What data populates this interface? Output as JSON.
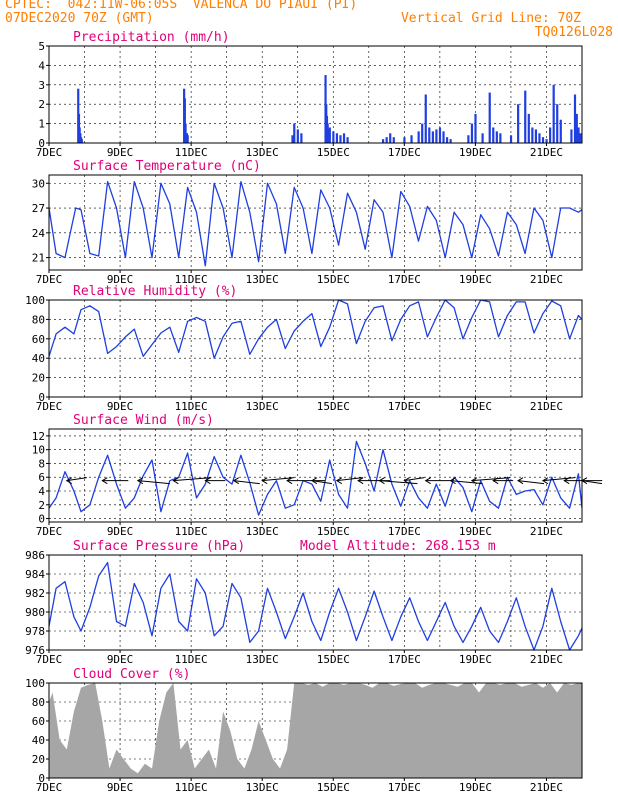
{
  "header": {
    "line1_left": "CPTEC:  042:11W-06:05S  VALENCA DO PIAUI (PI)",
    "line2_left": "07DEC2020 70Z (GMT)",
    "line2_right": "Vertical Grid Line: 70Z",
    "line3_right": "TQ0126L028"
  },
  "colors": {
    "header": "#ff7f00",
    "panel_title": "#e0007a",
    "series": "#1f3fe0",
    "cloud": "#a6a6a6",
    "wind_arrow": "#000000"
  },
  "chart_data": [
    {
      "type": "bar",
      "title": "Precipitation (mm/h)",
      "ylim": [
        0,
        5
      ],
      "yticks": [
        "0",
        "1",
        "2",
        "3",
        "4",
        "5"
      ],
      "xticks": [
        "7DEC",
        "9DEC",
        "11DEC",
        "13DEC",
        "15DEC",
        "17DEC",
        "19DEC",
        "21DEC"
      ],
      "x_start_day": 7,
      "x_end_day": 22,
      "x_unit": "days",
      "x": [
        7.82,
        7.84,
        7.86,
        7.88,
        7.9,
        7.92,
        10.8,
        10.82,
        10.84,
        10.86,
        10.88,
        10.9,
        13.85,
        13.9,
        14.0,
        14.1,
        14.78,
        14.8,
        14.82,
        14.84,
        14.86,
        14.9,
        15.0,
        15.1,
        15.2,
        15.3,
        15.4,
        16.4,
        16.5,
        16.6,
        16.7,
        17.0,
        17.2,
        17.4,
        17.5,
        17.6,
        17.7,
        17.8,
        17.9,
        18.0,
        18.1,
        18.2,
        18.3,
        18.8,
        18.9,
        19.0,
        19.2,
        19.4,
        19.5,
        19.6,
        19.7,
        20.0,
        20.2,
        20.4,
        20.5,
        20.6,
        20.7,
        20.8,
        20.9,
        21.0,
        21.1,
        21.2,
        21.3,
        21.4,
        21.7,
        21.8,
        21.85,
        21.9,
        21.95
      ],
      "values": [
        2.8,
        1.5,
        0.8,
        0.5,
        0.3,
        0.2,
        2.8,
        2.3,
        1.0,
        0.5,
        0.5,
        0.4,
        0.4,
        1.0,
        0.7,
        0.5,
        3.5,
        2.0,
        1.4,
        1.0,
        0.7,
        0.8,
        0.6,
        0.5,
        0.4,
        0.5,
        0.3,
        0.2,
        0.3,
        0.5,
        0.3,
        0.3,
        0.4,
        0.6,
        1.0,
        2.5,
        0.8,
        0.6,
        0.7,
        0.8,
        0.6,
        0.3,
        0.2,
        0.4,
        1.0,
        1.5,
        0.5,
        2.6,
        0.8,
        0.6,
        0.5,
        0.4,
        2.0,
        2.7,
        1.5,
        0.8,
        0.7,
        0.5,
        0.3,
        0.2,
        0.8,
        3.0,
        2.0,
        1.2,
        0.7,
        2.5,
        1.5,
        0.8,
        0.5
      ]
    },
    {
      "type": "line",
      "title": "Surface Temperature (nC)",
      "ylim": [
        19.5,
        31
      ],
      "yticks": [
        "21",
        "24",
        "27",
        "30"
      ],
      "xticks": [
        "7DEC",
        "9DEC",
        "11DEC",
        "13DEC",
        "15DEC",
        "17DEC",
        "19DEC",
        "21DEC"
      ],
      "x_start_day": 7,
      "x_end_day": 22,
      "x_unit": "days",
      "x": [
        7.0,
        7.2,
        7.45,
        7.6,
        7.75,
        7.9,
        8.15,
        8.4,
        8.65,
        8.9,
        9.15,
        9.4,
        9.65,
        9.9,
        10.15,
        10.4,
        10.65,
        10.9,
        11.15,
        11.4,
        11.65,
        11.9,
        12.15,
        12.4,
        12.65,
        12.9,
        13.15,
        13.4,
        13.65,
        13.9,
        14.15,
        14.4,
        14.65,
        14.9,
        15.15,
        15.4,
        15.65,
        15.9,
        16.15,
        16.4,
        16.65,
        16.9,
        17.15,
        17.4,
        17.65,
        17.9,
        18.15,
        18.4,
        18.65,
        18.9,
        19.15,
        19.4,
        19.65,
        19.9,
        20.15,
        20.4,
        20.65,
        20.9,
        21.15,
        21.4,
        21.65,
        21.9,
        22.0
      ],
      "series": [
        {
          "values": [
            27.0,
            21.5,
            21.0,
            24.0,
            27.0,
            26.8,
            21.5,
            21.2,
            30.2,
            27.0,
            21.0,
            30.2,
            27.0,
            21.0,
            30.0,
            27.5,
            21.0,
            29.5,
            26.5,
            20.0,
            30.0,
            27.0,
            21.0,
            30.2,
            26.5,
            20.5,
            30.0,
            27.5,
            21.5,
            29.5,
            27.0,
            21.5,
            29.2,
            27.0,
            22.5,
            28.8,
            26.5,
            22.0,
            28.0,
            26.5,
            21.0,
            29.0,
            27.2,
            23.0,
            27.2,
            25.5,
            21.0,
            26.5,
            25.0,
            21.0,
            26.2,
            24.5,
            21.2,
            26.5,
            25.0,
            21.5,
            27.0,
            25.5,
            21.0,
            27.0,
            27.0,
            26.5,
            26.8
          ]
        }
      ]
    },
    {
      "type": "line",
      "title": "Relative Humidity (%)",
      "ylim": [
        0,
        100
      ],
      "yticks": [
        "0",
        "20",
        "40",
        "60",
        "80",
        "100"
      ],
      "xticks": [
        "7DEC",
        "9DEC",
        "11DEC",
        "13DEC",
        "15DEC",
        "17DEC",
        "19DEC",
        "21DEC"
      ],
      "x_start_day": 7,
      "x_end_day": 22,
      "x_unit": "days",
      "x": [
        7.0,
        7.2,
        7.45,
        7.7,
        7.9,
        8.15,
        8.4,
        8.65,
        8.9,
        9.15,
        9.4,
        9.65,
        9.9,
        10.15,
        10.4,
        10.65,
        10.9,
        11.15,
        11.4,
        11.65,
        11.9,
        12.15,
        12.4,
        12.65,
        12.9,
        13.15,
        13.4,
        13.65,
        13.9,
        14.15,
        14.4,
        14.65,
        14.9,
        15.15,
        15.4,
        15.65,
        15.9,
        16.15,
        16.4,
        16.65,
        16.9,
        17.15,
        17.4,
        17.65,
        17.9,
        18.15,
        18.4,
        18.65,
        18.9,
        19.15,
        19.4,
        19.65,
        19.9,
        20.15,
        20.4,
        20.65,
        20.9,
        21.15,
        21.4,
        21.65,
        21.9,
        22.0
      ],
      "series": [
        {
          "values": [
            42,
            65,
            72,
            65,
            90,
            94,
            88,
            45,
            52,
            62,
            70,
            42,
            54,
            66,
            72,
            46,
            78,
            82,
            78,
            40,
            62,
            76,
            78,
            44,
            60,
            72,
            80,
            50,
            68,
            78,
            86,
            52,
            72,
            100,
            96,
            55,
            78,
            92,
            94,
            58,
            80,
            94,
            98,
            62,
            82,
            100,
            92,
            60,
            82,
            100,
            98,
            62,
            84,
            98,
            98,
            66,
            86,
            99,
            94,
            60,
            84,
            80
          ]
        }
      ]
    },
    {
      "type": "line",
      "title": "Surface Wind (m/s)",
      "ylim": [
        -0.5,
        13
      ],
      "yticks": [
        "0",
        "2",
        "4",
        "6",
        "8",
        "10",
        "12"
      ],
      "xticks": [
        "7DEC",
        "9DEC",
        "11DEC",
        "13DEC",
        "15DEC",
        "17DEC",
        "19DEC",
        "21DEC"
      ],
      "x_start_day": 7,
      "x_end_day": 22,
      "x_unit": "days",
      "x": [
        7.0,
        7.2,
        7.45,
        7.7,
        7.9,
        8.15,
        8.4,
        8.65,
        8.9,
        9.15,
        9.4,
        9.65,
        9.9,
        10.15,
        10.4,
        10.65,
        10.9,
        11.15,
        11.4,
        11.65,
        11.9,
        12.15,
        12.4,
        12.65,
        12.9,
        13.15,
        13.4,
        13.65,
        13.9,
        14.15,
        14.4,
        14.65,
        14.9,
        15.15,
        15.4,
        15.65,
        15.9,
        16.15,
        16.4,
        16.65,
        16.9,
        17.15,
        17.4,
        17.65,
        17.9,
        18.15,
        18.4,
        18.65,
        18.9,
        19.15,
        19.4,
        19.65,
        19.9,
        20.15,
        20.4,
        20.65,
        20.9,
        21.15,
        21.4,
        21.65,
        21.9,
        22.0
      ],
      "wind_vectors_x": [
        7.5,
        8.5,
        9.5,
        10.5,
        11.4,
        12.2,
        13.0,
        13.7,
        14.4,
        15.1,
        15.7,
        16.3,
        17.0,
        17.6,
        18.3,
        18.9,
        19.5,
        20.2,
        20.9,
        21.5,
        22.0
      ],
      "series": [
        {
          "values": [
            1.5,
            3.0,
            6.8,
            4.0,
            1.0,
            2.0,
            6.0,
            9.2,
            5.0,
            1.5,
            3.0,
            6.2,
            8.5,
            1.0,
            5.5,
            6.0,
            9.5,
            3.0,
            5.0,
            9.0,
            6.0,
            5.0,
            9.2,
            5.2,
            0.5,
            3.5,
            5.5,
            1.5,
            2.0,
            5.5,
            5.0,
            2.5,
            8.5,
            3.5,
            1.5,
            11.2,
            8.0,
            4.0,
            10.0,
            5.0,
            1.8,
            5.5,
            3.0,
            1.5,
            5.0,
            1.8,
            6.0,
            4.5,
            1.0,
            5.5,
            2.5,
            1.5,
            6.0,
            3.5,
            4.0,
            4.2,
            2.0,
            6.0,
            3.0,
            1.5,
            6.5,
            1.5
          ]
        }
      ]
    },
    {
      "type": "line",
      "title": "Surface Pressure (hPa)",
      "annotation": "Model Altitude: 268.153 m",
      "ylim": [
        976,
        986
      ],
      "yticks": [
        "976",
        "978",
        "980",
        "982",
        "984",
        "986"
      ],
      "xticks": [
        "7DEC",
        "9DEC",
        "11DEC",
        "13DEC",
        "15DEC",
        "17DEC",
        "19DEC",
        "21DEC"
      ],
      "x_start_day": 7,
      "x_end_day": 22,
      "x_unit": "days",
      "x": [
        7.0,
        7.2,
        7.45,
        7.7,
        7.9,
        8.15,
        8.4,
        8.65,
        8.9,
        9.15,
        9.4,
        9.65,
        9.9,
        10.15,
        10.4,
        10.65,
        10.9,
        11.15,
        11.4,
        11.65,
        11.9,
        12.15,
        12.4,
        12.65,
        12.9,
        13.15,
        13.4,
        13.65,
        13.9,
        14.15,
        14.4,
        14.65,
        14.9,
        15.15,
        15.4,
        15.65,
        15.9,
        16.15,
        16.4,
        16.65,
        16.9,
        17.15,
        17.4,
        17.65,
        17.9,
        18.15,
        18.4,
        18.65,
        18.9,
        19.15,
        19.4,
        19.65,
        19.9,
        20.15,
        20.4,
        20.65,
        20.9,
        21.15,
        21.4,
        21.65,
        21.9,
        22.0
      ],
      "series": [
        {
          "values": [
            978.5,
            982.5,
            983.2,
            979.5,
            978.0,
            980.5,
            983.8,
            985.2,
            979.0,
            978.5,
            983.0,
            981.0,
            977.5,
            982.5,
            984.0,
            979.0,
            978.0,
            983.5,
            982.0,
            977.5,
            978.5,
            983.0,
            981.5,
            976.8,
            978.0,
            982.5,
            980.0,
            977.2,
            979.5,
            982.0,
            979.0,
            977.0,
            980.0,
            982.5,
            980.0,
            977.0,
            979.5,
            982.2,
            979.5,
            977.0,
            979.5,
            981.5,
            979.0,
            977.0,
            979.0,
            981.0,
            978.5,
            976.8,
            978.5,
            980.5,
            978.0,
            976.8,
            979.0,
            981.5,
            978.5,
            976.0,
            978.5,
            982.5,
            979.0,
            976.0,
            977.5,
            978.3
          ]
        }
      ]
    },
    {
      "type": "area",
      "title": "Cloud Cover (%)",
      "ylim": [
        0,
        100
      ],
      "yticks": [
        "0",
        "20",
        "40",
        "60",
        "80",
        "100"
      ],
      "xticks": [
        "7DEC",
        "9DEC",
        "11DEC",
        "13DEC",
        "15DEC",
        "17DEC",
        "19DEC",
        "21DEC"
      ],
      "x_start_day": 7,
      "x_end_day": 22,
      "x_unit": "days",
      "x": [
        7.0,
        7.1,
        7.3,
        7.5,
        7.7,
        7.9,
        8.1,
        8.3,
        8.5,
        8.7,
        8.9,
        9.1,
        9.3,
        9.5,
        9.7,
        9.9,
        10.1,
        10.3,
        10.5,
        10.7,
        10.9,
        11.1,
        11.3,
        11.5,
        11.7,
        11.9,
        12.1,
        12.3,
        12.5,
        12.7,
        12.9,
        13.1,
        13.3,
        13.5,
        13.7,
        13.9,
        14.1,
        14.3,
        14.5,
        14.7,
        14.9,
        15.1,
        15.3,
        15.5,
        15.7,
        15.9,
        16.1,
        16.3,
        16.5,
        16.7,
        16.9,
        17.1,
        17.3,
        17.5,
        17.7,
        17.9,
        18.1,
        18.3,
        18.5,
        18.7,
        18.9,
        19.1,
        19.3,
        19.5,
        19.7,
        19.9,
        20.1,
        20.3,
        20.5,
        20.7,
        20.9,
        21.1,
        21.3,
        21.5,
        21.7,
        21.9,
        22.0
      ],
      "series": [
        {
          "values": [
            80,
            90,
            40,
            30,
            70,
            95,
            98,
            100,
            60,
            10,
            30,
            20,
            10,
            5,
            15,
            10,
            60,
            90,
            100,
            30,
            40,
            10,
            20,
            30,
            10,
            70,
            50,
            20,
            10,
            30,
            60,
            40,
            20,
            10,
            30,
            100,
            100,
            98,
            100,
            96,
            100,
            100,
            98,
            100,
            100,
            98,
            95,
            100,
            100,
            97,
            99,
            100,
            100,
            95,
            98,
            100,
            100,
            98,
            96,
            100,
            100,
            90,
            100,
            100,
            98,
            100,
            100,
            96,
            98,
            100,
            95,
            100,
            90,
            100,
            98,
            100,
            100
          ]
        }
      ]
    }
  ]
}
